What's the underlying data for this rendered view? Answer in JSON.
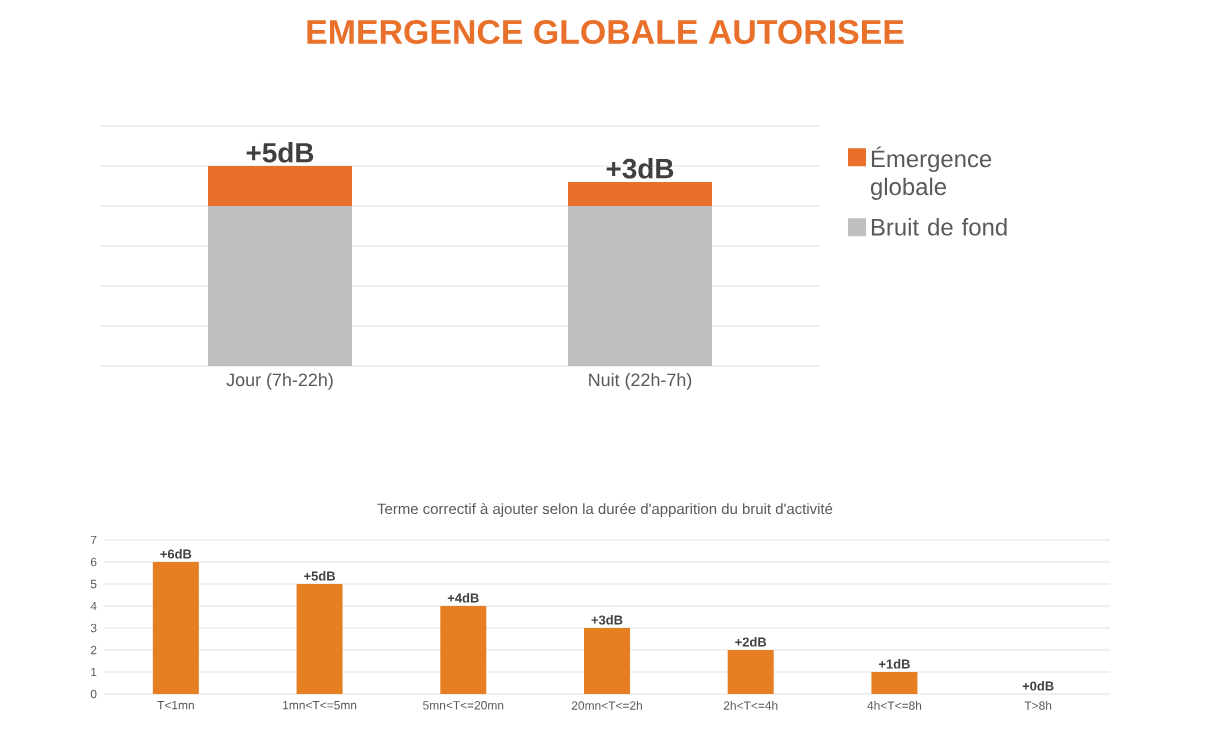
{
  "chart_data": [
    {
      "type": "bar",
      "title": "EMERGENCE GLOBALE AUTORISEE",
      "stacked": true,
      "grid": "y",
      "legend": "right",
      "tick_labels": "x",
      "ylim": [
        0,
        30
      ],
      "yticks": [
        {
          "value": 0,
          "label": null
        },
        {
          "value": 5,
          "label": null
        },
        {
          "value": 10,
          "label": null
        },
        {
          "value": 15,
          "label": null
        },
        {
          "value": 20,
          "label": null
        },
        {
          "value": 25,
          "label": null
        },
        {
          "value": 30,
          "label": null
        }
      ],
      "categories": [
        "Jour (7h-22h)",
        "Nuit (22h-7h)"
      ],
      "series": [
        {
          "name": "Bruit de fond",
          "color": "#bfbfbf",
          "values": [
            20,
            20
          ]
        },
        {
          "name": "Émergence globale",
          "color": "#e8702a",
          "values": [
            5,
            3
          ],
          "value_labels": [
            "+5dB",
            "+3dB"
          ]
        }
      ]
    },
    {
      "type": "bar",
      "title": "Terme correctif à ajouter selon la durée d'apparition du bruit d'activité",
      "grid": "y",
      "categories": [
        "T<1mn",
        "1mn<T<=5mn",
        "5mn<T<=20mn",
        "20mn<T<=2h",
        "2h<T<=4h",
        "4h<T<=8h",
        "T>8h"
      ],
      "values": [
        6,
        5,
        4,
        3,
        2,
        1,
        0
      ],
      "color": "#e67e22",
      "value_labels": [
        "+6dB",
        "+5dB",
        "+4dB",
        "+3dB",
        "+2dB",
        "+1dB",
        "+0dB"
      ],
      "ylim": [
        0,
        7
      ],
      "yticks": [
        0,
        1,
        2,
        3,
        4,
        5,
        6,
        7
      ]
    }
  ]
}
